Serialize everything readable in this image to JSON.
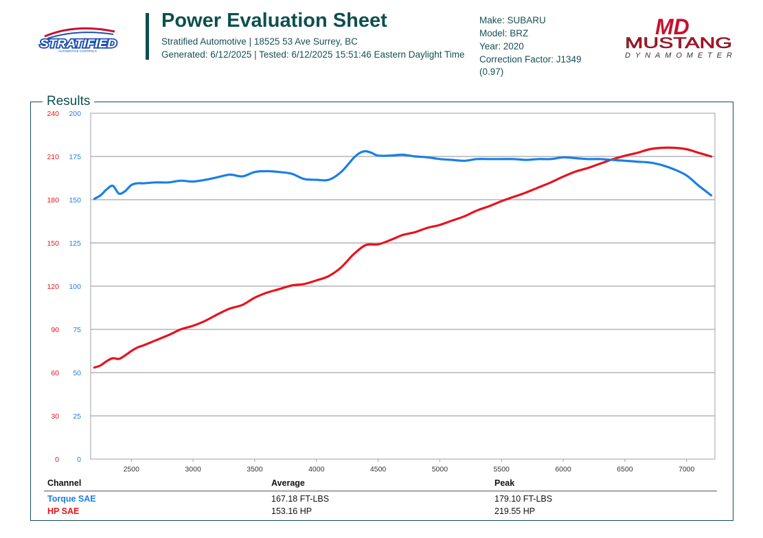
{
  "header": {
    "title": "Power Evaluation Sheet",
    "address": "Stratified Automotive | 18525 53 Ave Surrey, BC",
    "generated": "Generated: 6/12/2025 | Tested: 6/12/2025 15:51:46 Eastern Daylight Time",
    "left_logo": {
      "name": "Stratified logo",
      "text": "STRATIFIED",
      "tagline": "AUTOMOTIVE CONTROLS",
      "color": "#1b4fb5"
    },
    "right_logo": {
      "name": "Mustang Dynamometer logo",
      "mark": "MD",
      "word1": "MUSTANG",
      "word2": "DYNAMOMETER",
      "color": "#c8102e"
    }
  },
  "vehicle": {
    "make": "Make: SUBARU",
    "model": "Model: BRZ",
    "year": "Year: 2020",
    "correction": "Correction Factor: J1349",
    "correction_value": "(0.97)"
  },
  "results_label": "Results",
  "table": {
    "headers": {
      "channel": "Channel",
      "average": "Average",
      "peak": "Peak"
    },
    "rows": [
      {
        "channel": "Torque SAE",
        "average": "167.18 FT-LBS",
        "peak": "179.10 FT-LBS"
      },
      {
        "channel": "HP SAE",
        "average": "153.16 HP",
        "peak": "219.55 HP"
      }
    ]
  },
  "chart_data": {
    "type": "line",
    "x_range": [
      2170,
      7230
    ],
    "x_ticks": [
      2500,
      3000,
      3500,
      4000,
      4500,
      5000,
      5500,
      6000,
      6500,
      7000
    ],
    "y_left": {
      "range": [
        0,
        240
      ],
      "ticks": [
        0,
        30,
        60,
        90,
        120,
        150,
        180,
        210,
        240
      ],
      "color": "#e8121c"
    },
    "y_right": {
      "range": [
        0,
        200
      ],
      "ticks": [
        0,
        25,
        50,
        75,
        100,
        125,
        150,
        175,
        200
      ],
      "color": "#1a7ee8"
    },
    "grid": true,
    "series": [
      {
        "name": "HP SAE",
        "axis": "left",
        "color": "#e8121c",
        "x": [
          2200,
          2250,
          2300,
          2350,
          2400,
          2450,
          2500,
          2550,
          2600,
          2700,
          2800,
          2900,
          3000,
          3100,
          3200,
          3300,
          3400,
          3500,
          3600,
          3700,
          3800,
          3900,
          4000,
          4100,
          4200,
          4300,
          4400,
          4500,
          4600,
          4700,
          4800,
          4900,
          5000,
          5100,
          5200,
          5300,
          5400,
          5500,
          5600,
          5700,
          5800,
          5900,
          6000,
          6100,
          6200,
          6300,
          6400,
          6500,
          6600,
          6700,
          6800,
          6900,
          7000,
          7100,
          7200
        ],
        "y": [
          63.5,
          65,
          68,
          70,
          69.5,
          72,
          75,
          77.5,
          79,
          82.5,
          86,
          90,
          92.5,
          96,
          100.5,
          104.5,
          107,
          112,
          115.5,
          118,
          120.5,
          121.5,
          124,
          127,
          133,
          142,
          148.5,
          149,
          152,
          155.5,
          157.5,
          160.5,
          162.5,
          165.5,
          168.5,
          172.5,
          175.5,
          179,
          182,
          185,
          188.5,
          192,
          196,
          199.5,
          202,
          205,
          208,
          210.5,
          212.5,
          215,
          216,
          216,
          215,
          212.5,
          210
        ]
      },
      {
        "name": "Torque SAE",
        "axis": "right",
        "color": "#1a7ee8",
        "x": [
          2200,
          2250,
          2300,
          2350,
          2400,
          2450,
          2500,
          2550,
          2600,
          2700,
          2800,
          2900,
          3000,
          3100,
          3200,
          3300,
          3400,
          3500,
          3600,
          3700,
          3800,
          3900,
          4000,
          4100,
          4200,
          4300,
          4350,
          4400,
          4450,
          4500,
          4600,
          4700,
          4800,
          4900,
          5000,
          5100,
          5200,
          5300,
          5400,
          5500,
          5600,
          5700,
          5800,
          5900,
          6000,
          6100,
          6200,
          6300,
          6400,
          6500,
          6600,
          6700,
          6800,
          6900,
          7000,
          7100,
          7200
        ],
        "y": [
          150.5,
          152.5,
          156,
          158,
          153.5,
          155,
          158.5,
          159.5,
          159.5,
          160,
          160,
          161,
          160.5,
          161.5,
          163,
          164.5,
          163.5,
          166,
          166.5,
          166,
          165,
          162,
          161.5,
          161.5,
          166,
          174,
          177,
          178,
          177,
          175.5,
          175.5,
          176,
          175,
          174.5,
          173.5,
          173,
          172.5,
          173.5,
          173.5,
          173.5,
          173.5,
          173,
          173.5,
          173.5,
          174.5,
          174,
          173.5,
          173.5,
          173,
          172.5,
          172,
          171.5,
          170,
          167.5,
          164,
          158,
          152.5
        ]
      }
    ]
  }
}
